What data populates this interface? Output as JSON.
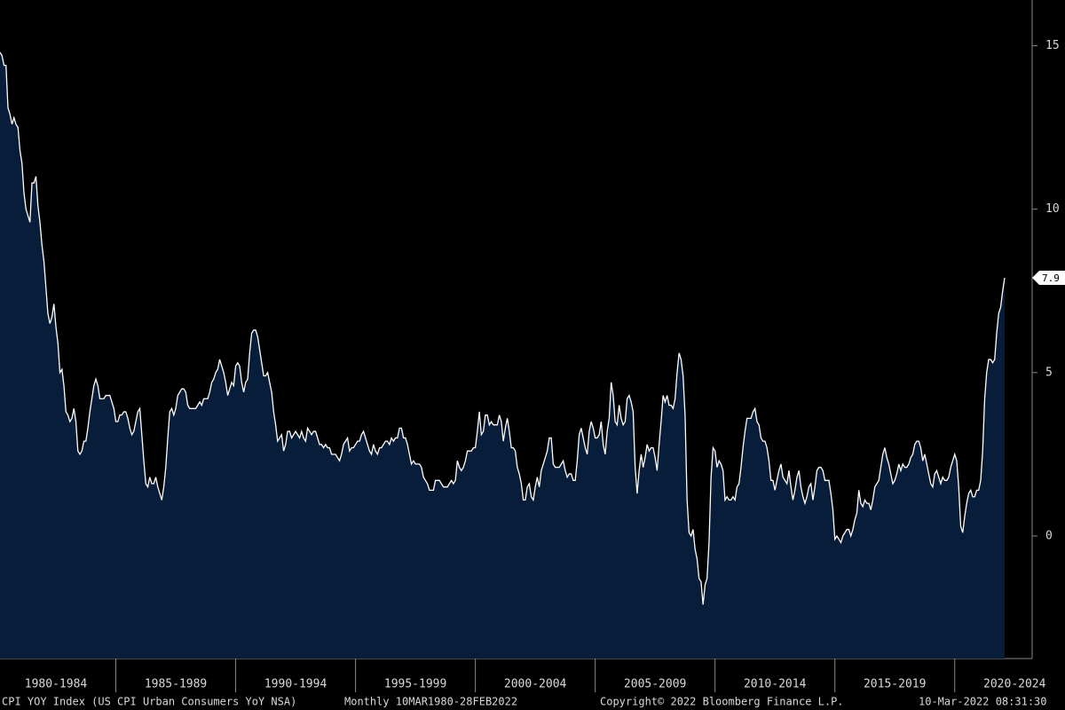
{
  "chart_data": {
    "type": "area",
    "x_labels": [
      "1980-1984",
      "1985-1989",
      "1990-1994",
      "1995-1999",
      "2000-2004",
      "2005-2009",
      "2010-2014",
      "2015-2019",
      "2020-2024"
    ],
    "values": [
      14.8,
      14.7,
      14.4,
      14.4,
      13.1,
      12.9,
      12.6,
      12.8,
      12.6,
      12.5,
      11.8,
      11.4,
      10.5,
      10.0,
      9.8,
      9.6,
      10.8,
      10.8,
      11.0,
      10.1,
      9.6,
      8.9,
      8.4,
      7.6,
      6.8,
      6.5,
      6.7,
      7.1,
      6.4,
      5.9,
      5.0,
      5.1,
      4.6,
      3.8,
      3.7,
      3.5,
      3.6,
      3.9,
      3.5,
      2.6,
      2.5,
      2.6,
      2.9,
      2.9,
      3.3,
      3.8,
      4.2,
      4.6,
      4.8,
      4.6,
      4.2,
      4.2,
      4.2,
      4.3,
      4.3,
      4.3,
      4.1,
      3.9,
      3.5,
      3.5,
      3.7,
      3.7,
      3.8,
      3.8,
      3.6,
      3.3,
      3.1,
      3.2,
      3.5,
      3.8,
      3.9,
      3.1,
      2.3,
      1.6,
      1.5,
      1.8,
      1.6,
      1.6,
      1.8,
      1.5,
      1.3,
      1.1,
      1.5,
      2.1,
      3.0,
      3.8,
      3.9,
      3.7,
      3.9,
      4.3,
      4.4,
      4.5,
      4.5,
      4.4,
      4.0,
      3.9,
      3.9,
      3.9,
      3.9,
      4.0,
      4.1,
      4.0,
      4.2,
      4.2,
      4.2,
      4.4,
      4.7,
      4.8,
      5.0,
      5.1,
      5.4,
      5.2,
      5.0,
      4.7,
      4.3,
      4.5,
      4.7,
      4.6,
      5.2,
      5.3,
      5.2,
      4.7,
      4.4,
      4.7,
      4.8,
      5.6,
      6.2,
      6.3,
      6.3,
      6.1,
      5.7,
      5.3,
      4.9,
      4.9,
      5.0,
      4.7,
      4.4,
      3.8,
      3.4,
      2.9,
      3.0,
      3.1,
      2.6,
      2.8,
      3.2,
      3.2,
      3.0,
      3.1,
      3.2,
      3.1,
      3.0,
      3.2,
      3.0,
      2.9,
      3.3,
      3.2,
      3.1,
      3.2,
      3.2,
      3.0,
      2.8,
      2.8,
      2.7,
      2.8,
      2.7,
      2.7,
      2.5,
      2.5,
      2.5,
      2.4,
      2.3,
      2.5,
      2.8,
      2.9,
      3.0,
      2.6,
      2.7,
      2.7,
      2.8,
      2.9,
      2.9,
      3.1,
      3.2,
      3.0,
      2.8,
      2.6,
      2.5,
      2.8,
      2.6,
      2.5,
      2.7,
      2.7,
      2.8,
      2.9,
      2.9,
      2.8,
      3.0,
      2.9,
      3.0,
      3.0,
      3.3,
      3.3,
      3.0,
      3.0,
      2.8,
      2.5,
      2.2,
      2.3,
      2.2,
      2.2,
      2.2,
      2.1,
      1.8,
      1.7,
      1.6,
      1.4,
      1.4,
      1.4,
      1.7,
      1.7,
      1.7,
      1.6,
      1.5,
      1.5,
      1.5,
      1.6,
      1.7,
      1.6,
      1.7,
      2.3,
      2.1,
      2.0,
      2.1,
      2.3,
      2.6,
      2.6,
      2.6,
      2.7,
      2.7,
      3.2,
      3.8,
      3.1,
      3.2,
      3.7,
      3.7,
      3.4,
      3.5,
      3.4,
      3.4,
      3.4,
      3.7,
      3.5,
      2.9,
      3.3,
      3.6,
      3.2,
      2.7,
      2.7,
      2.6,
      2.1,
      1.9,
      1.6,
      1.1,
      1.1,
      1.5,
      1.6,
      1.2,
      1.1,
      1.5,
      1.8,
      1.5,
      2.0,
      2.2,
      2.4,
      2.6,
      3.0,
      3.0,
      2.2,
      2.1,
      2.1,
      2.1,
      2.2,
      2.3,
      2.0,
      1.8,
      1.9,
      1.9,
      1.7,
      1.7,
      2.3,
      3.1,
      3.3,
      3.0,
      2.7,
      2.5,
      3.2,
      3.5,
      3.3,
      3.0,
      3.0,
      3.1,
      3.5,
      2.8,
      2.5,
      3.2,
      3.6,
      4.7,
      4.3,
      3.5,
      3.4,
      4.0,
      3.6,
      3.4,
      3.5,
      4.2,
      4.3,
      4.1,
      3.8,
      2.1,
      1.3,
      2.0,
      2.5,
      2.1,
      2.4,
      2.8,
      2.6,
      2.7,
      2.7,
      2.4,
      2.0,
      2.8,
      3.5,
      4.3,
      4.1,
      4.3,
      4.0,
      4.0,
      3.9,
      4.2,
      5.0,
      5.6,
      5.4,
      4.9,
      3.7,
      1.1,
      0.1,
      0.0,
      0.2,
      -0.4,
      -0.7,
      -1.3,
      -1.4,
      -2.1,
      -1.5,
      -1.3,
      -0.2,
      1.8,
      2.7,
      2.6,
      2.1,
      2.3,
      2.2,
      2.0,
      1.1,
      1.2,
      1.1,
      1.1,
      1.2,
      1.1,
      1.5,
      1.6,
      2.1,
      2.7,
      3.2,
      3.6,
      3.6,
      3.6,
      3.8,
      3.9,
      3.5,
      3.4,
      3.0,
      2.9,
      2.9,
      2.7,
      2.3,
      1.7,
      1.7,
      1.4,
      1.7,
      2.0,
      2.2,
      1.8,
      1.7,
      1.6,
      2.0,
      1.5,
      1.1,
      1.4,
      1.8,
      2.0,
      1.5,
      1.2,
      1.0,
      1.2,
      1.5,
      1.6,
      1.1,
      1.5,
      2.0,
      2.1,
      2.1,
      2.0,
      1.7,
      1.7,
      1.7,
      1.3,
      0.8,
      -0.1,
      0.0,
      -0.1,
      -0.2,
      0.0,
      0.1,
      0.2,
      0.2,
      0.0,
      0.2,
      0.5,
      0.7,
      1.4,
      1.0,
      0.9,
      1.1,
      1.0,
      1.0,
      0.8,
      1.1,
      1.5,
      1.6,
      1.7,
      2.1,
      2.5,
      2.7,
      2.4,
      2.2,
      1.9,
      1.6,
      1.7,
      1.9,
      2.2,
      2.0,
      2.2,
      2.1,
      2.1,
      2.2,
      2.4,
      2.5,
      2.8,
      2.9,
      2.9,
      2.7,
      2.3,
      2.5,
      2.2,
      1.9,
      1.6,
      1.5,
      1.9,
      2.0,
      1.8,
      1.6,
      1.8,
      1.7,
      1.7,
      1.8,
      2.1,
      2.3,
      2.5,
      2.3,
      1.5,
      0.3,
      0.1,
      0.6,
      1.0,
      1.3,
      1.4,
      1.2,
      1.2,
      1.4,
      1.4,
      1.7,
      2.6,
      4.2,
      5.0,
      5.4,
      5.4,
      5.3,
      5.4,
      6.2,
      6.8,
      7.0,
      7.5,
      7.9
    ],
    "line_color": "#ffffff",
    "fill_color": "#071d3a",
    "ylim": [
      -3.75,
      16.4
    ],
    "yticks": [
      0,
      5,
      10,
      15
    ],
    "footer": [
      "CPI YOY Index (US CPI Urban Consumers YoY NSA)",
      "Monthly 10MAR1980-28FEB2022",
      "Copyright© 2022 Bloomberg Finance L.P.",
      "10-Mar-2022 08:31:30"
    ]
  }
}
